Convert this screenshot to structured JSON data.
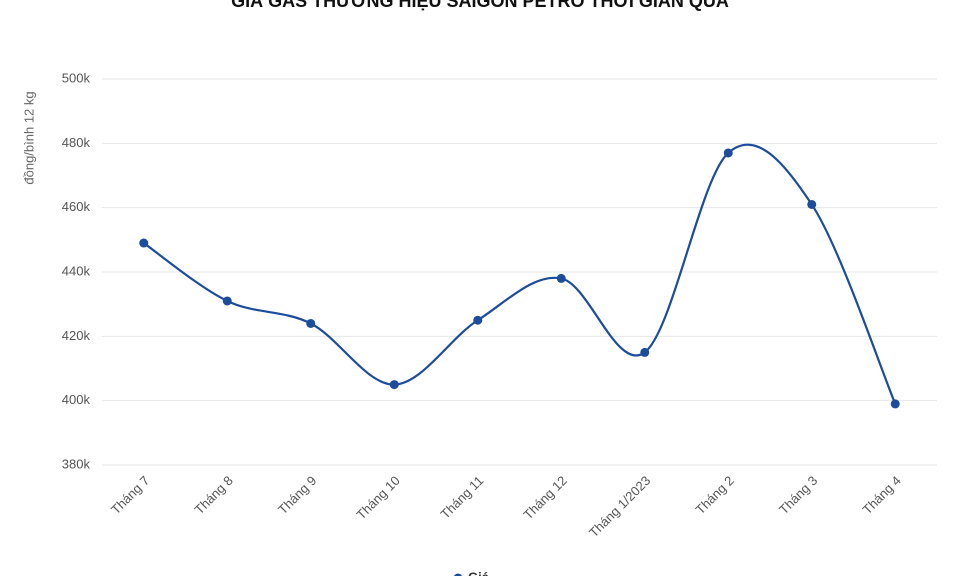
{
  "chart_data": {
    "type": "line",
    "title": "GIÁ GAS THƯƠNG HIỆU SAIGON PETRO THỜI GIAN QUA",
    "y_label": "đồng/bình 12 kg",
    "categories": [
      "Tháng 7",
      "Tháng 8",
      "Tháng 9",
      "Tháng 10",
      "Tháng 11",
      "Tháng 12",
      "Tháng 1/2023",
      "Tháng 2",
      "Tháng 3",
      "Tháng 4"
    ],
    "series": [
      {
        "name": "Giá",
        "color": "#1c4c9c",
        "values": [
          449000,
          431000,
          424000,
          405000,
          425000,
          438000,
          415000,
          477000,
          461000,
          399000
        ]
      }
    ],
    "ylim": [
      380000,
      500000
    ],
    "yticks": [
      {
        "value": 380000,
        "label": "380k"
      },
      {
        "value": 400000,
        "label": "400k"
      },
      {
        "value": 420000,
        "label": "420k"
      },
      {
        "value": 440000,
        "label": "440k"
      },
      {
        "value": 460000,
        "label": "460k"
      },
      {
        "value": 480000,
        "label": "480k"
      },
      {
        "value": 500000,
        "label": "500k"
      }
    ],
    "grid": true,
    "smooth": true,
    "legend": "bottom"
  }
}
